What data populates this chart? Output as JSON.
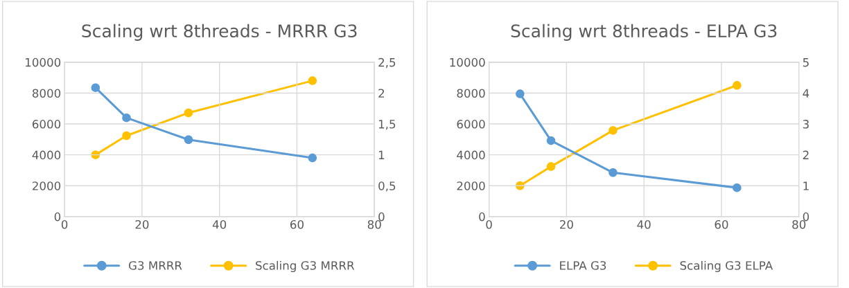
{
  "chart_data": [
    {
      "type": "line",
      "title": "Scaling wrt 8threads - MRRR G3",
      "x": [
        8,
        16,
        32,
        64
      ],
      "series": [
        {
          "name": "G3 MRRR",
          "color": "#5b9bd5",
          "values": [
            8350,
            6400,
            4980,
            3800
          ]
        },
        {
          "name": "Scaling G3 MRRR",
          "color": "#ffc000",
          "values": [
            1,
            1.31,
            1.68,
            2.2
          ],
          "axis": "y2"
        }
      ],
      "xlim": [
        0,
        80
      ],
      "xticks": [
        0,
        20,
        40,
        60,
        80
      ],
      "ylim": [
        0,
        10000
      ],
      "yticks": [
        0,
        2000,
        4000,
        6000,
        8000,
        10000
      ],
      "y2lim": [
        0,
        2.5
      ],
      "y2ticks": [
        0,
        {
          "value": 0.5,
          "label": "0,5"
        },
        1,
        {
          "value": 1.5,
          "label": "1,5"
        },
        2,
        {
          "value": 2.5,
          "label": "2,5"
        }
      ],
      "grid": true,
      "legend": "bottom",
      "marker": "circle"
    },
    {
      "type": "line",
      "title": "Scaling wrt 8threads - ELPA G3",
      "x": [
        8,
        16,
        32,
        64
      ],
      "series": [
        {
          "name": "ELPA G3",
          "color": "#5b9bd5",
          "values": [
            7950,
            4920,
            2850,
            1870
          ]
        },
        {
          "name": "Scaling G3 ELPA",
          "color": "#ffc000",
          "values": [
            1,
            1.62,
            2.79,
            4.25
          ],
          "axis": "y2"
        }
      ],
      "xlim": [
        0,
        80
      ],
      "xticks": [
        0,
        20,
        40,
        60,
        80
      ],
      "ylim": [
        0,
        10000
      ],
      "yticks": [
        0,
        2000,
        4000,
        6000,
        8000,
        10000
      ],
      "y2lim": [
        0,
        5
      ],
      "y2ticks": [
        0,
        1,
        2,
        3,
        4,
        5
      ],
      "grid": true,
      "legend": "bottom",
      "marker": "circle"
    }
  ]
}
